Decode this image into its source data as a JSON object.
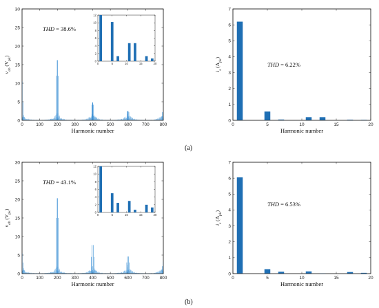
{
  "colors": {
    "bar": "#1f6fb4",
    "spectrum": "#3a8fd4",
    "axis": "#222222"
  },
  "captions": [
    "(a)",
    "(b)"
  ],
  "chart_data": [
    {
      "id": "a-left",
      "type": "bar",
      "xlabel": "Harmonic number",
      "ylabel": "v_ab (V_pk)",
      "xlim": [
        0,
        800
      ],
      "ylim": [
        0,
        30
      ],
      "xticks": [
        0,
        100,
        200,
        300,
        400,
        500,
        600,
        700,
        800
      ],
      "yticks": [
        0,
        5,
        10,
        15,
        20,
        25,
        30
      ],
      "annotation": "THD = 38.6%",
      "peaks": [
        [
          1,
          10.5
        ],
        [
          5,
          4.8
        ],
        [
          195,
          12
        ],
        [
          199,
          16.2
        ],
        [
          201,
          16.2
        ],
        [
          205,
          12
        ],
        [
          395,
          4.2
        ],
        [
          399,
          4.8
        ],
        [
          401,
          4.8
        ],
        [
          405,
          4.2
        ],
        [
          595,
          2.4
        ],
        [
          599,
          2.5
        ],
        [
          601,
          2.5
        ],
        [
          605,
          2.2
        ],
        [
          795,
          2.2
        ],
        [
          799,
          2.4
        ]
      ],
      "inset": {
        "type": "bar",
        "xlim": [
          0,
          20
        ],
        "ylim": [
          0,
          12
        ],
        "xticks": [
          0,
          5,
          10,
          15,
          20
        ],
        "yticks": [
          0,
          2,
          4,
          6,
          8,
          10,
          12
        ],
        "x": [
          1,
          5,
          7,
          11,
          13,
          17,
          19
        ],
        "values": [
          12,
          10.2,
          1.3,
          4.7,
          4.7,
          1.3,
          0.7
        ]
      }
    },
    {
      "id": "a-right",
      "type": "bar",
      "xlabel": "Harmonic number",
      "ylabel": "i_s (A_pk)",
      "xlim": [
        0,
        20
      ],
      "ylim": [
        0,
        7
      ],
      "xticks": [
        0,
        5,
        10,
        15,
        20
      ],
      "yticks": [
        0,
        1,
        2,
        3,
        4,
        5,
        6,
        7
      ],
      "annotation": "THD = 6.22%",
      "x": [
        1,
        3,
        5,
        7,
        9,
        11,
        13,
        15,
        17,
        19
      ],
      "values": [
        6.2,
        0.0,
        0.55,
        0.05,
        0.0,
        0.2,
        0.2,
        0.0,
        0.04,
        0.03
      ]
    },
    {
      "id": "b-left",
      "type": "bar",
      "xlabel": "Harmonic number",
      "ylabel": "v_ab (V_pk)",
      "xlim": [
        0,
        800
      ],
      "ylim": [
        0,
        30
      ],
      "xticks": [
        0,
        100,
        200,
        300,
        400,
        500,
        600,
        700,
        800
      ],
      "yticks": [
        0,
        5,
        10,
        15,
        20,
        25,
        30
      ],
      "annotation": "THD = 43.1%",
      "peaks": [
        [
          1,
          5.5
        ],
        [
          5,
          3.0
        ],
        [
          195,
          15
        ],
        [
          199,
          20.3
        ],
        [
          201,
          20.3
        ],
        [
          205,
          15
        ],
        [
          393,
          4.5
        ],
        [
          397,
          7.7
        ],
        [
          403,
          7.7
        ],
        [
          407,
          4.5
        ],
        [
          593,
          3.0
        ],
        [
          597,
          4.6
        ],
        [
          603,
          4.6
        ],
        [
          607,
          3.0
        ],
        [
          795,
          2.0
        ],
        [
          799,
          3.2
        ]
      ],
      "inset": {
        "type": "bar",
        "xlim": [
          0,
          20
        ],
        "ylim": [
          0,
          12
        ],
        "xticks": [
          0,
          5,
          10,
          15,
          20
        ],
        "yticks": [
          0,
          2,
          4,
          6,
          8,
          10,
          12
        ],
        "x": [
          1,
          5,
          7,
          11,
          13,
          17,
          19
        ],
        "values": [
          12,
          5.0,
          2.5,
          3.0,
          0.7,
          2.0,
          1.3
        ]
      }
    },
    {
      "id": "b-right",
      "type": "bar",
      "xlabel": "Harmonic number",
      "ylabel": "i_s (A_pk)",
      "xlim": [
        0,
        20
      ],
      "ylim": [
        0,
        7
      ],
      "xticks": [
        0,
        5,
        10,
        15,
        20
      ],
      "yticks": [
        0,
        1,
        2,
        3,
        4,
        5,
        6,
        7
      ],
      "annotation": "THD = 6.53%",
      "x": [
        1,
        3,
        5,
        7,
        9,
        11,
        13,
        15,
        17,
        19
      ],
      "values": [
        6.05,
        0.0,
        0.28,
        0.12,
        0.0,
        0.14,
        0.02,
        0.0,
        0.1,
        0.05
      ]
    }
  ]
}
